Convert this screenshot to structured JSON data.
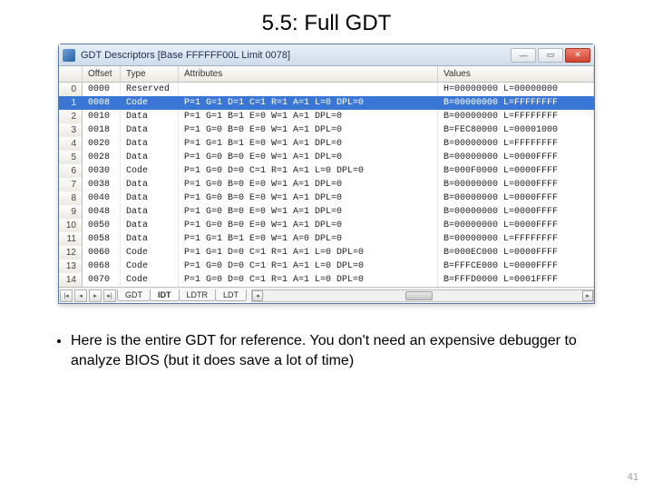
{
  "slide": {
    "title": "5.5: Full GDT",
    "page_number": "41",
    "bullet": "Here is the entire GDT for reference. You don't need an expensive debugger to analyze BIOS (but it does save a lot of time)"
  },
  "window": {
    "title": "GDT Descriptors [Base FFFFFF00L Limit 0078]",
    "headers": {
      "idx": "",
      "offset": "Offset",
      "type": "Type",
      "attributes": "Attributes",
      "values": "Values"
    },
    "selected_index": 1,
    "rows": [
      {
        "idx": "0",
        "offset": "0000",
        "type": "Reserved",
        "attr": "",
        "values": "H=00000000 L=00000000"
      },
      {
        "idx": "1",
        "offset": "0008",
        "type": "Code",
        "attr": "P=1 G=1 D=1 C=1 R=1 A=1 L=0 DPL=0",
        "values": "B=00000000 L=FFFFFFFF"
      },
      {
        "idx": "2",
        "offset": "0010",
        "type": "Data",
        "attr": "P=1 G=1 B=1 E=0 W=1 A=1 DPL=0",
        "values": "B=00000000 L=FFFFFFFF"
      },
      {
        "idx": "3",
        "offset": "0018",
        "type": "Data",
        "attr": "P=1 G=0 B=0 E=0 W=1 A=1 DPL=0",
        "values": "B=FEC80000 L=00001000"
      },
      {
        "idx": "4",
        "offset": "0020",
        "type": "Data",
        "attr": "P=1 G=1 B=1 E=0 W=1 A=1 DPL=0",
        "values": "B=00000000 L=FFFFFFFF"
      },
      {
        "idx": "5",
        "offset": "0028",
        "type": "Data",
        "attr": "P=1 G=0 B=0 E=0 W=1 A=1 DPL=0",
        "values": "B=00000000 L=0000FFFF"
      },
      {
        "idx": "6",
        "offset": "0030",
        "type": "Code",
        "attr": "P=1 G=0 D=0 C=1 R=1 A=1 L=0 DPL=0",
        "values": "B=000F0000 L=0000FFFF"
      },
      {
        "idx": "7",
        "offset": "0038",
        "type": "Data",
        "attr": "P=1 G=0 B=0 E=0 W=1 A=1 DPL=0",
        "values": "B=00000000 L=0000FFFF"
      },
      {
        "idx": "8",
        "offset": "0040",
        "type": "Data",
        "attr": "P=1 G=0 B=0 E=0 W=1 A=1 DPL=0",
        "values": "B=00000000 L=0000FFFF"
      },
      {
        "idx": "9",
        "offset": "0048",
        "type": "Data",
        "attr": "P=1 G=0 B=0 E=0 W=1 A=1 DPL=0",
        "values": "B=00000000 L=0000FFFF"
      },
      {
        "idx": "10",
        "offset": "0050",
        "type": "Data",
        "attr": "P=1 G=0 B=0 E=0 W=1 A=1 DPL=0",
        "values": "B=00000000 L=0000FFFF"
      },
      {
        "idx": "11",
        "offset": "0058",
        "type": "Data",
        "attr": "P=1 G=1 B=1 E=0 W=1 A=0 DPL=0",
        "values": "B=00000000 L=FFFFFFFF"
      },
      {
        "idx": "12",
        "offset": "0060",
        "type": "Code",
        "attr": "P=1 G=1 D=0 C=1 R=1 A=1 L=0 DPL=0",
        "values": "B=000EC000 L=0000FFFF"
      },
      {
        "idx": "13",
        "offset": "0068",
        "type": "Code",
        "attr": "P=1 G=0 D=0 C=1 R=1 A=1 L=0 DPL=0",
        "values": "B=FFFCE000 L=0000FFFF"
      },
      {
        "idx": "14",
        "offset": "0070",
        "type": "Code",
        "attr": "P=1 G=0 D=0 C=1 R=1 A=1 L=0 DPL=0",
        "values": "B=FFFD0000 L=0001FFFF"
      }
    ],
    "tabs": [
      {
        "label": "GDT",
        "active": false
      },
      {
        "label": "IDT",
        "active": true
      },
      {
        "label": "LDTR",
        "active": false
      },
      {
        "label": "LDT",
        "active": false
      }
    ]
  }
}
